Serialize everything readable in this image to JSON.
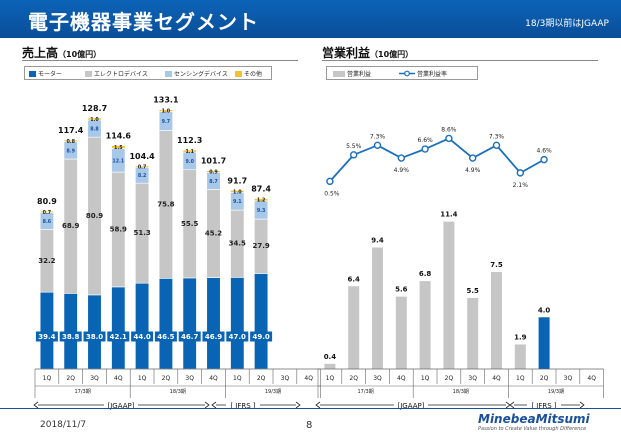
{
  "header": {
    "title": "電子機器事業セグメント",
    "note": "18/3期以前はJGAAP"
  },
  "footer": {
    "date": "2018/11/7",
    "page": "8",
    "logo_name": "MinebeaMitsumi",
    "logo_tagline": "Passion to Create Value through Difference"
  },
  "colors": {
    "mortor": "#0a64b4",
    "electro": "#c6c6c6",
    "sensing": "#a8c8ea",
    "other": "#f2c233",
    "op_bar_gray": "#c6c6c6",
    "op_bar_blue": "#0a64b4",
    "line": "#1b6fbf"
  },
  "left": {
    "title": "売上高",
    "unit": "（10億円）",
    "legend": [
      "モーター",
      "エレクトロデバイス",
      "センシングデバイス",
      "その他"
    ]
  },
  "right": {
    "title": "営業利益",
    "unit": "（10億円）",
    "legend": [
      "営業利益",
      "営業利益率"
    ]
  },
  "axis": {
    "quarters": [
      "1Q",
      "2Q",
      "3Q",
      "4Q",
      "1Q",
      "2Q",
      "3Q",
      "4Q",
      "1Q",
      "2Q",
      "3Q",
      "4Q"
    ],
    "fy": [
      "17/3期",
      "18/3期",
      "19/3期"
    ],
    "gaap_labels": [
      "[JGAAP]",
      "[ IFRS ]"
    ]
  },
  "chart_data": [
    {
      "type": "bar",
      "stacked": true,
      "title": "売上高（10億円）",
      "categories": [
        "1Q",
        "2Q",
        "3Q",
        "4Q",
        "1Q",
        "2Q",
        "3Q",
        "4Q",
        "1Q",
        "2Q",
        "3Q",
        "4Q"
      ],
      "series": [
        {
          "name": "モーター",
          "values": [
            39.4,
            38.8,
            38.0,
            42.1,
            44.0,
            46.5,
            46.7,
            46.9,
            47.0,
            49.0,
            null,
            null
          ]
        },
        {
          "name": "エレクトロデバイス",
          "values": [
            32.2,
            68.9,
            80.9,
            58.9,
            51.3,
            75.8,
            55.5,
            45.2,
            34.5,
            27.9,
            null,
            null
          ]
        },
        {
          "name": "センシングデバイス",
          "values": [
            8.6,
            8.9,
            8.8,
            12.1,
            8.2,
            9.7,
            9.0,
            8.7,
            9.1,
            9.3,
            null,
            null
          ]
        },
        {
          "name": "その他",
          "values": [
            0.7,
            0.8,
            1.0,
            1.5,
            0.7,
            1.0,
            1.1,
            0.9,
            1.0,
            1.2,
            null,
            null
          ]
        }
      ],
      "totals": [
        80.9,
        117.4,
        128.7,
        114.6,
        104.4,
        133.1,
        112.3,
        101.7,
        91.7,
        87.4,
        null,
        null
      ],
      "ylim": [
        0,
        140
      ]
    },
    {
      "type": "bar+line",
      "title": "営業利益（10億円）",
      "categories": [
        "1Q",
        "2Q",
        "3Q",
        "4Q",
        "1Q",
        "2Q",
        "3Q",
        "4Q",
        "1Q",
        "2Q",
        "3Q",
        "4Q"
      ],
      "series": [
        {
          "name": "営業利益",
          "values": [
            0.4,
            6.4,
            9.4,
            5.6,
            6.8,
            11.4,
            5.5,
            7.5,
            1.9,
            4.0,
            null,
            null
          ]
        },
        {
          "name": "営業利益率",
          "values": [
            0.5,
            5.5,
            7.3,
            4.9,
            6.6,
            8.6,
            4.9,
            7.3,
            2.1,
            4.6,
            null,
            null
          ],
          "unit": "%"
        }
      ],
      "bar_labels": [
        "0.4",
        "6.4",
        "9.4",
        "5.6",
        "6.8",
        "11.4",
        "5.5",
        "7.5",
        "1.9",
        "4.0"
      ],
      "line_labels": [
        "0.5%",
        "5.5%",
        "7.3%",
        "4.9%",
        "6.6%",
        "8.6%",
        "4.9%",
        "7.3%",
        "2.1%",
        "4.6%"
      ],
      "ylim": [
        0,
        14
      ]
    }
  ]
}
